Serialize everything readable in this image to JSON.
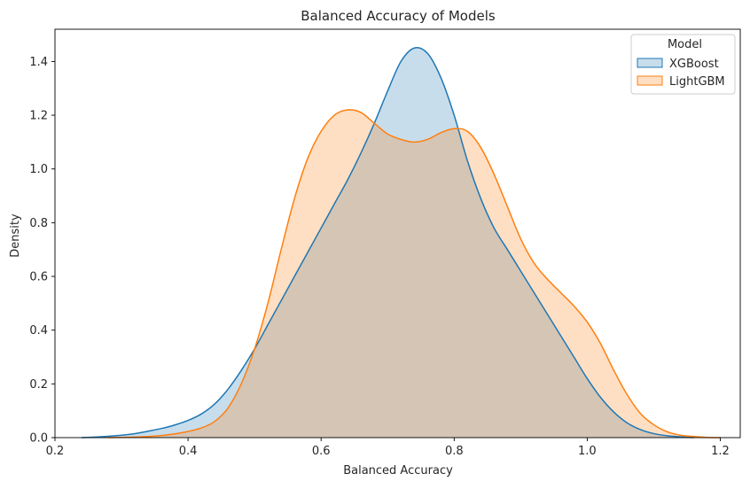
{
  "chart_data": {
    "type": "area",
    "title": "Balanced Accuracy of Models",
    "xlabel": "Balanced Accuracy",
    "ylabel": "Density",
    "xlim": [
      0.2,
      1.23
    ],
    "ylim": [
      0.0,
      1.52
    ],
    "xticks": [
      0.2,
      0.4,
      0.6,
      0.8,
      1.0,
      1.2
    ],
    "xtick_labels": [
      "0.2",
      "0.4",
      "0.6",
      "0.8",
      "1.0",
      "1.2"
    ],
    "yticks": [
      0.0,
      0.2,
      0.4,
      0.6,
      0.8,
      1.0,
      1.2,
      1.4
    ],
    "ytick_labels": [
      "0.0",
      "0.2",
      "0.4",
      "0.6",
      "0.8",
      "1.0",
      "1.2",
      "1.4"
    ],
    "grid": false,
    "legend": {
      "title": "Model",
      "placement": "top-right"
    },
    "series": [
      {
        "name": "XGBoost",
        "color": "#1f77b4",
        "points": [
          [
            0.24,
            0.0
          ],
          [
            0.26,
            0.002
          ],
          [
            0.28,
            0.005
          ],
          [
            0.3,
            0.009
          ],
          [
            0.32,
            0.015
          ],
          [
            0.34,
            0.024
          ],
          [
            0.36,
            0.034
          ],
          [
            0.38,
            0.047
          ],
          [
            0.4,
            0.064
          ],
          [
            0.42,
            0.088
          ],
          [
            0.44,
            0.125
          ],
          [
            0.46,
            0.18
          ],
          [
            0.48,
            0.25
          ],
          [
            0.5,
            0.33
          ],
          [
            0.52,
            0.42
          ],
          [
            0.54,
            0.51
          ],
          [
            0.56,
            0.6
          ],
          [
            0.58,
            0.69
          ],
          [
            0.6,
            0.78
          ],
          [
            0.62,
            0.87
          ],
          [
            0.64,
            0.96
          ],
          [
            0.66,
            1.06
          ],
          [
            0.68,
            1.17
          ],
          [
            0.7,
            1.29
          ],
          [
            0.72,
            1.4
          ],
          [
            0.74,
            1.45
          ],
          [
            0.76,
            1.43
          ],
          [
            0.78,
            1.34
          ],
          [
            0.8,
            1.2
          ],
          [
            0.82,
            1.03
          ],
          [
            0.84,
            0.89
          ],
          [
            0.86,
            0.78
          ],
          [
            0.88,
            0.7
          ],
          [
            0.9,
            0.62
          ],
          [
            0.92,
            0.54
          ],
          [
            0.94,
            0.46
          ],
          [
            0.96,
            0.38
          ],
          [
            0.98,
            0.3
          ],
          [
            1.0,
            0.22
          ],
          [
            1.02,
            0.15
          ],
          [
            1.04,
            0.095
          ],
          [
            1.06,
            0.055
          ],
          [
            1.08,
            0.03
          ],
          [
            1.1,
            0.015
          ],
          [
            1.12,
            0.007
          ],
          [
            1.14,
            0.003
          ],
          [
            1.16,
            0.0
          ]
        ]
      },
      {
        "name": "LightGBM",
        "color": "#ff7f0e",
        "points": [
          [
            0.28,
            0.0
          ],
          [
            0.3,
            0.001
          ],
          [
            0.32,
            0.002
          ],
          [
            0.34,
            0.004
          ],
          [
            0.36,
            0.008
          ],
          [
            0.38,
            0.014
          ],
          [
            0.4,
            0.023
          ],
          [
            0.42,
            0.036
          ],
          [
            0.44,
            0.06
          ],
          [
            0.46,
            0.11
          ],
          [
            0.48,
            0.2
          ],
          [
            0.5,
            0.33
          ],
          [
            0.52,
            0.5
          ],
          [
            0.54,
            0.7
          ],
          [
            0.56,
            0.89
          ],
          [
            0.58,
            1.04
          ],
          [
            0.6,
            1.14
          ],
          [
            0.62,
            1.2
          ],
          [
            0.64,
            1.22
          ],
          [
            0.66,
            1.21
          ],
          [
            0.68,
            1.17
          ],
          [
            0.7,
            1.13
          ],
          [
            0.72,
            1.11
          ],
          [
            0.74,
            1.1
          ],
          [
            0.76,
            1.11
          ],
          [
            0.78,
            1.135
          ],
          [
            0.8,
            1.15
          ],
          [
            0.82,
            1.14
          ],
          [
            0.84,
            1.08
          ],
          [
            0.86,
            0.98
          ],
          [
            0.88,
            0.86
          ],
          [
            0.9,
            0.74
          ],
          [
            0.92,
            0.65
          ],
          [
            0.94,
            0.59
          ],
          [
            0.96,
            0.54
          ],
          [
            0.98,
            0.49
          ],
          [
            1.0,
            0.43
          ],
          [
            1.02,
            0.35
          ],
          [
            1.04,
            0.25
          ],
          [
            1.06,
            0.16
          ],
          [
            1.08,
            0.09
          ],
          [
            1.1,
            0.048
          ],
          [
            1.12,
            0.022
          ],
          [
            1.14,
            0.009
          ],
          [
            1.16,
            0.004
          ],
          [
            1.18,
            0.001
          ],
          [
            1.2,
            0.0
          ]
        ]
      }
    ]
  }
}
